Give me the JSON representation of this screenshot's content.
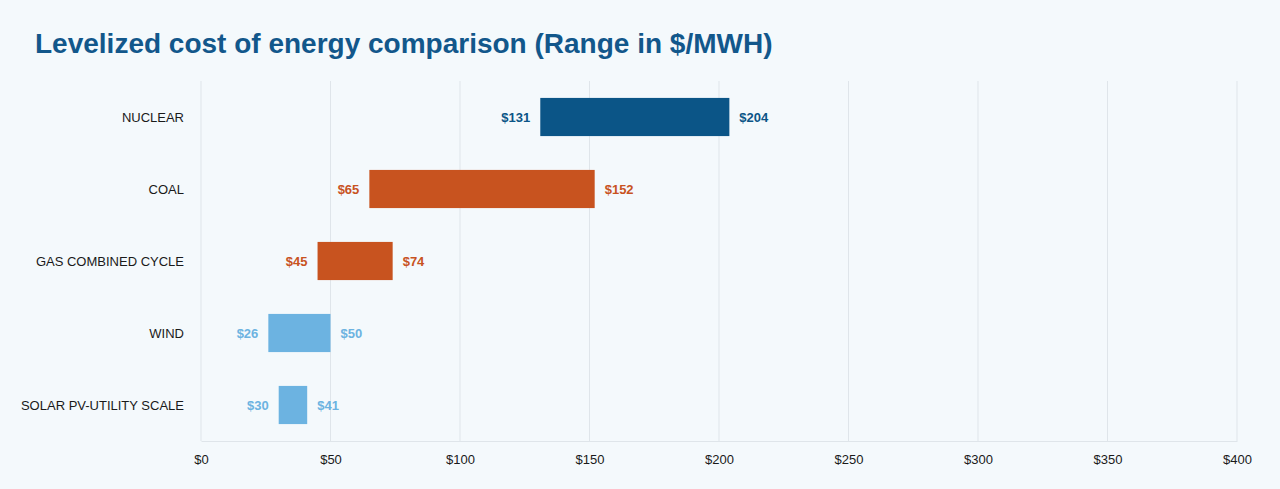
{
  "chart_data": {
    "type": "bar",
    "orientation": "horizontal",
    "title": "Levelized cost of energy comparison (Range in $/MWH)",
    "categories": [
      "NUCLEAR",
      "COAL",
      "GAS COMBINED CYCLE",
      "WIND",
      "SOLAR PV-UTILITY SCALE"
    ],
    "values": [
      [
        131,
        204
      ],
      [
        65,
        152
      ],
      [
        45,
        74
      ],
      [
        26,
        50
      ],
      [
        30,
        41
      ]
    ],
    "value_labels": [
      [
        "$131",
        "$204"
      ],
      [
        "$65",
        "$152"
      ],
      [
        "$45",
        "$74"
      ],
      [
        "$26",
        "$50"
      ],
      [
        "$30",
        "$41"
      ]
    ],
    "colors": [
      "#0b5587",
      "#c8531f",
      "#c8531f",
      "#6cb3e1",
      "#6cb3e1"
    ],
    "xlim": [
      0,
      400
    ],
    "xticks": [
      {
        "value": 0,
        "label": "$0"
      },
      {
        "value": 50,
        "label": "$50"
      },
      {
        "value": 100,
        "label": "$100"
      },
      {
        "value": 150,
        "label": "$150"
      },
      {
        "value": 200,
        "label": "$200"
      },
      {
        "value": 250,
        "label": "$250"
      },
      {
        "value": 300,
        "label": "$300"
      },
      {
        "value": 350,
        "label": "$350"
      },
      {
        "value": 400,
        "label": "$400"
      }
    ],
    "grid": true,
    "data_labels": true
  }
}
